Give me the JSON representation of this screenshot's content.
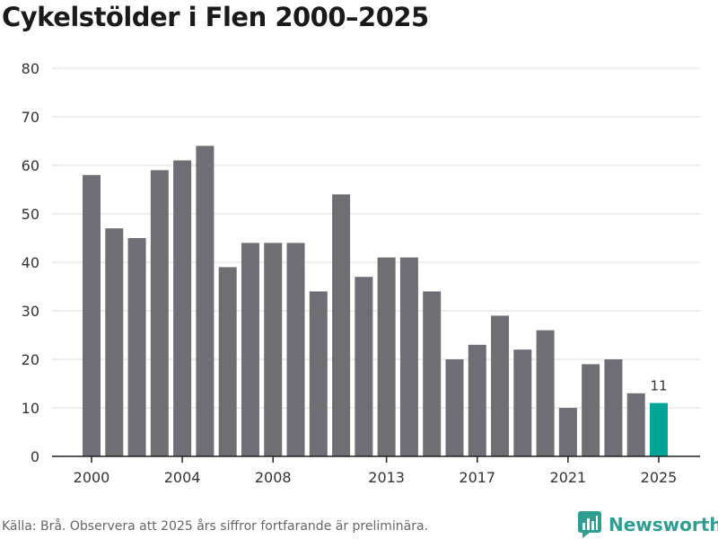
{
  "chart_data": {
    "type": "bar",
    "title": "Cykelstölder i Flen 2000–2025",
    "x": [
      2000,
      2001,
      2002,
      2003,
      2004,
      2005,
      2006,
      2007,
      2008,
      2009,
      2010,
      2011,
      2012,
      2013,
      2014,
      2015,
      2016,
      2017,
      2018,
      2019,
      2020,
      2021,
      2022,
      2023,
      2024,
      2025
    ],
    "values": [
      58,
      47,
      45,
      59,
      61,
      64,
      39,
      44,
      44,
      44,
      34,
      54,
      37,
      41,
      41,
      34,
      20,
      23,
      29,
      22,
      26,
      10,
      19,
      20,
      13,
      11
    ],
    "x_tick_labels": [
      "2000",
      "2004",
      "2008",
      "2013",
      "2017",
      "2021",
      "2025"
    ],
    "y_ticks": [
      0,
      10,
      20,
      30,
      40,
      50,
      60,
      70,
      80
    ],
    "ylim": [
      0,
      80
    ],
    "highlight": {
      "year": 2025,
      "label": "11"
    },
    "colors": {
      "bar": "#6f6e74",
      "highlight": "#00a598",
      "grid": "#dddddd",
      "axis": "#222222"
    },
    "xlabel": "",
    "ylabel": ""
  },
  "footer": {
    "source": "Källa: Brå. Observera att 2025 års siffror fortfarande är preliminära.",
    "brand": "Newsworthy",
    "brand_icon": "bar-chart-speech-icon"
  }
}
